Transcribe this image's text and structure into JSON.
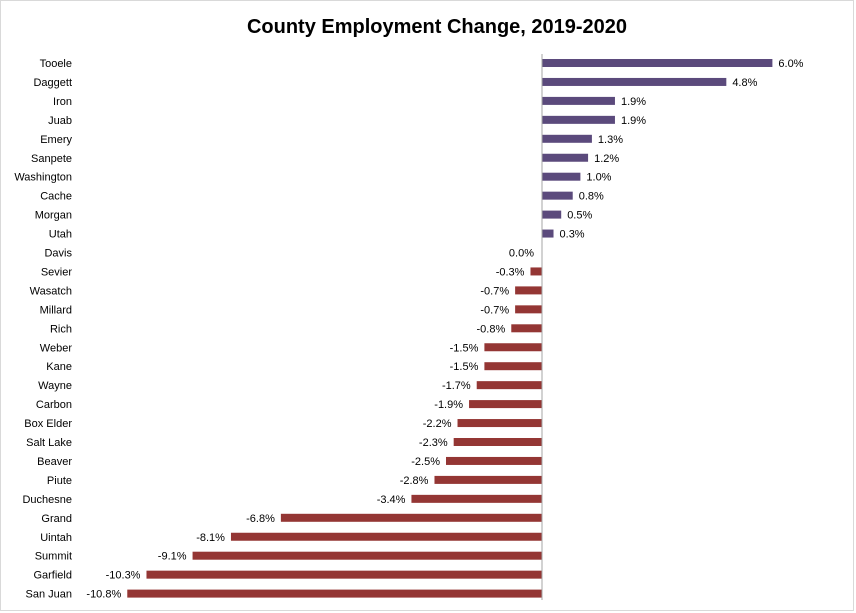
{
  "chart_data": {
    "type": "bar",
    "orientation": "horizontal",
    "title": "County Employment Change, 2019-2020",
    "xlabel": "",
    "ylabel": "",
    "grid": false,
    "legend": "none",
    "colors": {
      "positive": "#5b4a7c",
      "negative": "#943634",
      "axis": "#a6a6a6"
    },
    "categories": [
      "Tooele",
      "Daggett",
      "Iron",
      "Juab",
      "Emery",
      "Sanpete",
      "Washington",
      "Cache",
      "Morgan",
      "Utah",
      "Davis",
      "Sevier",
      "Wasatch",
      "Millard",
      "Rich",
      "Weber",
      "Kane",
      "Wayne",
      "Carbon",
      "Box Elder",
      "Salt Lake",
      "Beaver",
      "Piute",
      "Duchesne",
      "Grand",
      "Uintah",
      "Summit",
      "Garfield",
      "San Juan"
    ],
    "values": [
      6.0,
      4.8,
      1.9,
      1.9,
      1.3,
      1.2,
      1.0,
      0.8,
      0.5,
      0.3,
      0.0,
      -0.3,
      -0.7,
      -0.7,
      -0.8,
      -1.5,
      -1.5,
      -1.7,
      -1.9,
      -2.2,
      -2.3,
      -2.5,
      -2.8,
      -3.4,
      -6.8,
      -8.1,
      -9.1,
      -10.3,
      -10.8
    ],
    "data_labels": [
      "6.0%",
      "4.8%",
      "1.9%",
      "1.9%",
      "1.3%",
      "1.2%",
      "1.0%",
      "0.8%",
      "0.5%",
      "0.3%",
      "0.0%",
      "-0.3%",
      "-0.7%",
      "-0.7%",
      "-0.8%",
      "-1.5%",
      "-1.5%",
      "-1.7%",
      "-1.9%",
      "-2.2%",
      "-2.3%",
      "-2.5%",
      "-2.8%",
      "-3.4%",
      "-6.8%",
      "-8.1%",
      "-9.1%",
      "-10.3%",
      "-10.8%"
    ],
    "xlim": [
      -10.8,
      6.0
    ]
  }
}
